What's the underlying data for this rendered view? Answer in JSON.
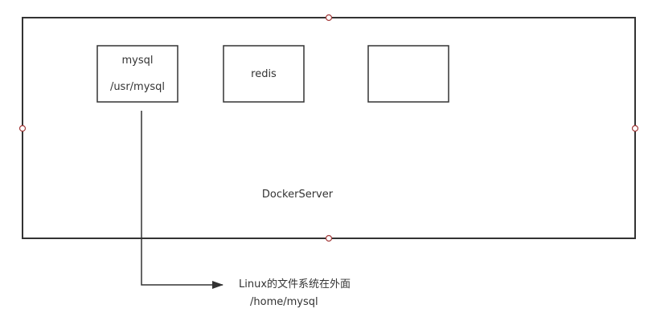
{
  "colors": {
    "stroke": "#333333",
    "handle": "#a33a3a",
    "text": "#333333"
  },
  "server": {
    "label": "DockerServer"
  },
  "containers": [
    {
      "name": "mysql",
      "path": "/usr/mysql"
    },
    {
      "name": "redis"
    },
    {
      "name": ""
    }
  ],
  "host": {
    "title": "Linux的文件系统在外面",
    "path": "/home/mysql"
  }
}
